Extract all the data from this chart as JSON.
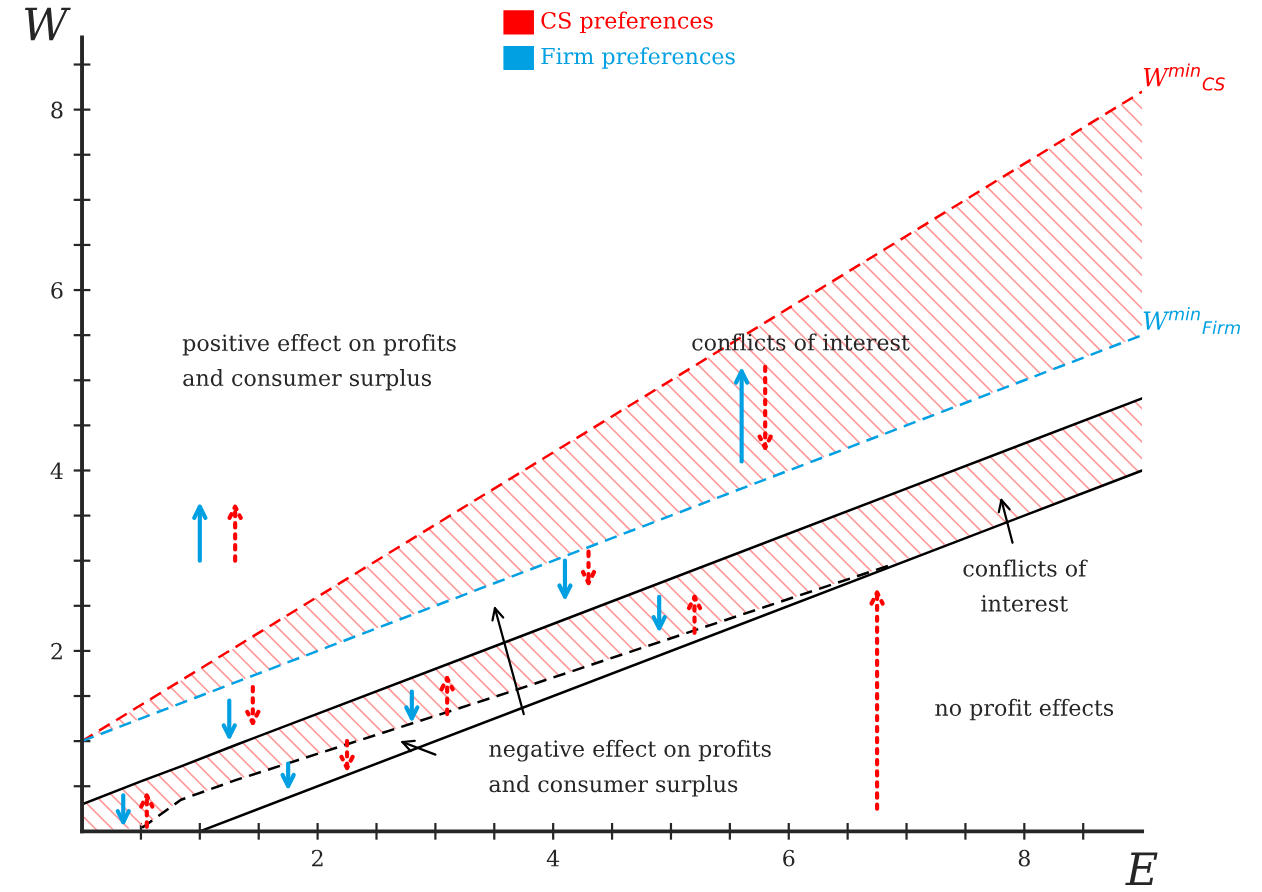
{
  "chart_data": {
    "type": "line",
    "xlabel": "E",
    "ylabel": "W",
    "xlim": [
      0,
      9
    ],
    "ylim": [
      0,
      8.8
    ],
    "xticks": [
      {
        "value": 0.5,
        "label": null
      },
      {
        "value": 1,
        "label": null
      },
      {
        "value": 1.5,
        "label": null
      },
      2,
      {
        "value": 2.5,
        "label": null
      },
      {
        "value": 3,
        "label": null
      },
      {
        "value": 3.5,
        "label": null
      },
      4,
      {
        "value": 4.5,
        "label": null
      },
      {
        "value": 5,
        "label": null
      },
      {
        "value": 5.5,
        "label": null
      },
      6,
      {
        "value": 6.5,
        "label": null
      },
      {
        "value": 7,
        "label": null
      },
      {
        "value": 7.5,
        "label": null
      },
      8,
      {
        "value": 8.5,
        "label": null
      }
    ],
    "yticks": [
      {
        "value": 0.5,
        "label": null
      },
      {
        "value": 1,
        "label": null
      },
      {
        "value": 1.5,
        "label": null
      },
      2,
      {
        "value": 2.5,
        "label": null
      },
      {
        "value": 3,
        "label": null
      },
      {
        "value": 3.5,
        "label": null
      },
      4,
      {
        "value": 4.5,
        "label": null
      },
      {
        "value": 5,
        "label": null
      },
      {
        "value": 5.5,
        "label": null
      },
      6,
      {
        "value": 6.5,
        "label": null
      },
      {
        "value": 7,
        "label": null
      },
      {
        "value": 7.5,
        "label": null
      },
      8,
      {
        "value": 8.5,
        "label": null
      }
    ],
    "grid": false,
    "series": [
      {
        "name": "W$^{min}$$_{CS}$",
        "color": "#ff0000",
        "line_style": "dashed",
        "x": [
          0,
          9
        ],
        "values": [
          1,
          8.2
        ],
        "lower": [
          1,
          5.5
        ],
        "upper": [
          1,
          8.2
        ]
      },
      {
        "name": "W$^{min}$$_{Firm}$",
        "color": "#00a0e3",
        "line_style": "dashed",
        "x": [
          0,
          9
        ],
        "values": [
          1,
          5.5
        ]
      },
      {
        "color": "#000000",
        "line_style": "solid",
        "x": [
          0,
          0.51,
          0.84,
          1.31,
          3.62,
          6.86,
          9
        ],
        "values": [
          0.3,
          0.56,
          0.72,
          0.96,
          2.11,
          3.73,
          4.8
        ],
        "lower": [
          0,
          0.04,
          0.35,
          0.57,
          1.54,
          2.95,
          4.0
        ],
        "upper": [
          0.3,
          0.56,
          0.72,
          0.96,
          2.11,
          3.73,
          4.8
        ]
      },
      {
        "color": "#000000",
        "line_style": "solid",
        "x": [
          1,
          9
        ],
        "values": [
          0,
          4
        ]
      },
      {
        "color": "#000000",
        "line_style": "dashed",
        "x": [
          0.51,
          0.84,
          1.31,
          3.62,
          6.86
        ],
        "values": [
          0.04,
          0.35,
          0.57,
          1.54,
          2.95
        ]
      }
    ],
    "annotations": [
      "CS preferences",
      "Firm preferences",
      "positive effect on profits\nand consumer surplus",
      "conflicts of interest",
      "conflicts of\ninterest",
      "negative effect on profits\nand consumer surplus",
      "no profit effects"
    ]
  }
}
